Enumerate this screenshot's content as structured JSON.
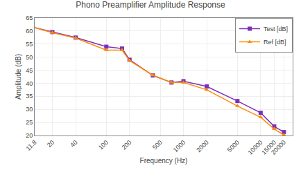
{
  "chart_data": {
    "type": "line",
    "title": "Phono Preamplifier Amplitude Response",
    "x_label": "Frequency (Hz)",
    "y_label": "Amplitude (dB)",
    "log": "x",
    "x": [
      11.8,
      20,
      40,
      100,
      160,
      200,
      400,
      700,
      1000,
      2000,
      5000,
      10000,
      15000,
      20000
    ],
    "series": [
      {
        "name": "Test [dB]",
        "color": "#7B2FBE",
        "marker": "square",
        "values": [
          61.3,
          59.6,
          57.5,
          54.0,
          53.3,
          49.0,
          43.0,
          40.3,
          40.8,
          38.8,
          33.2,
          28.7,
          23.5,
          21.3
        ]
      },
      {
        "name": "Ref [dB]",
        "color": "#FF8C00",
        "marker": "triangle-up",
        "values": [
          61.3,
          59.4,
          57.3,
          52.7,
          52.7,
          48.7,
          43.1,
          40.3,
          40.3,
          37.5,
          31.3,
          27.0,
          22.5,
          20.2
        ]
      }
    ],
    "xlim": [
      11.8,
      26000
    ],
    "xticks": [
      11.8,
      20,
      40,
      100,
      200,
      500,
      1000,
      2000,
      5000,
      10000,
      15000,
      20000
    ],
    "ylim": [
      20,
      65
    ],
    "yticks": [
      20,
      25,
      30,
      35,
      40,
      45,
      50,
      55,
      60,
      65
    ],
    "grid": true,
    "legend": "upper right"
  }
}
